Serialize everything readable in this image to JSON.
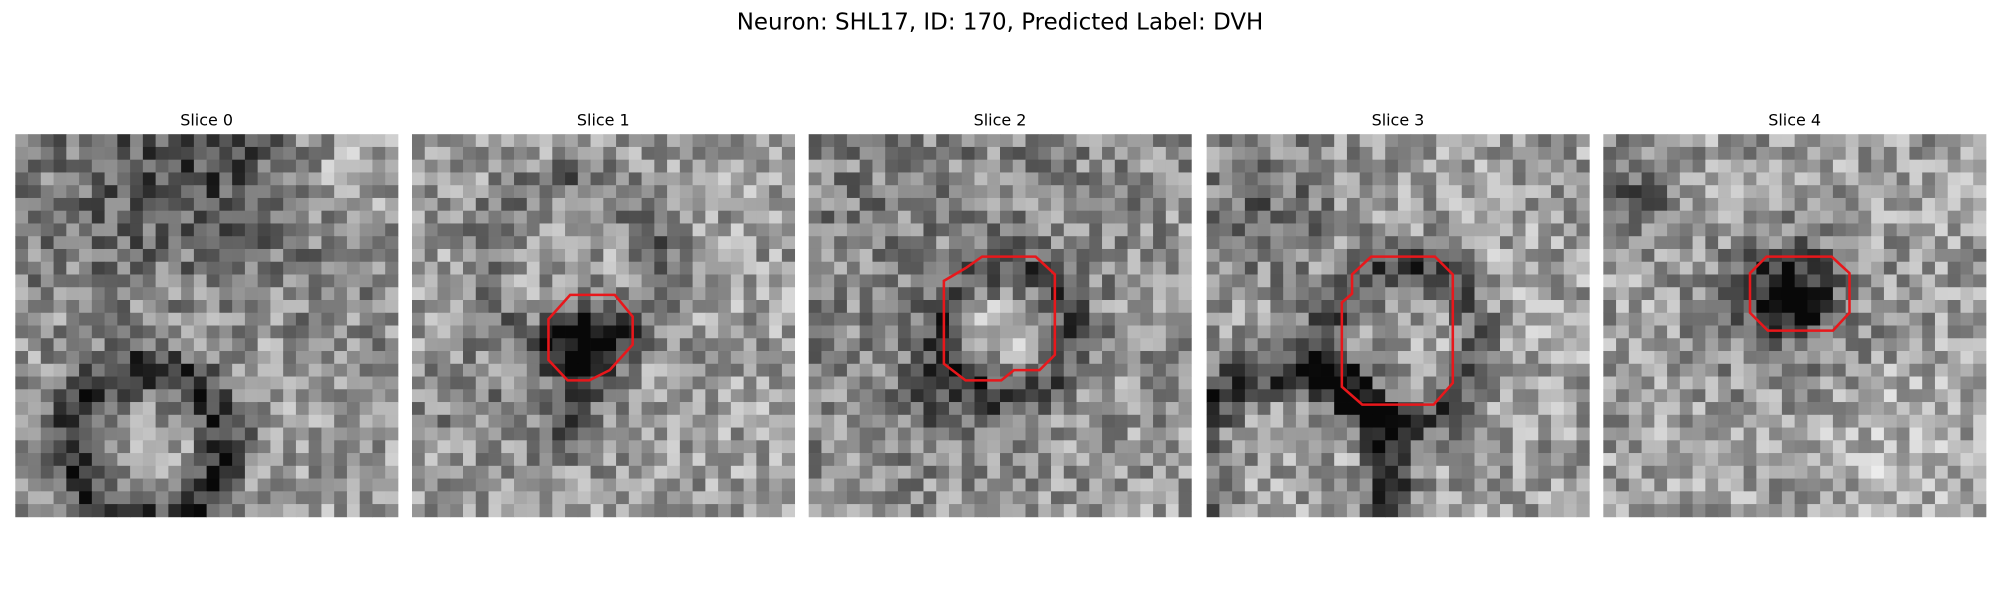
{
  "title": "Neuron: SHL17, ID: 170, Predicted Label: DVH",
  "panels": [
    {
      "title": "Slice 0"
    },
    {
      "title": "Slice 1"
    },
    {
      "title": "Slice 2"
    },
    {
      "title": "Slice 3"
    },
    {
      "title": "Slice 4"
    }
  ]
}
